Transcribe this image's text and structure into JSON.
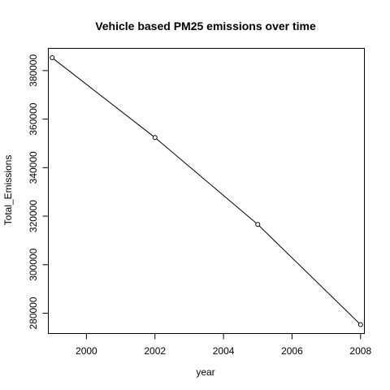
{
  "chart_data": {
    "type": "line",
    "title": "Vehicle based PM25 emissions over time",
    "xlabel": "year",
    "ylabel": "Total_Emissions",
    "xlim": [
      1998.9,
      2008.1
    ],
    "ylim": [
      271800,
      389000
    ],
    "xticks": [
      2000,
      2002,
      2004,
      2006,
      2008
    ],
    "yticks": [
      280000,
      300000,
      320000,
      340000,
      360000,
      380000
    ],
    "x": [
      1999,
      2002,
      2005,
      2008
    ],
    "y": [
      385300,
      352400,
      316600,
      275300
    ],
    "grid": false,
    "legend": "none",
    "markers": "open-circle"
  }
}
